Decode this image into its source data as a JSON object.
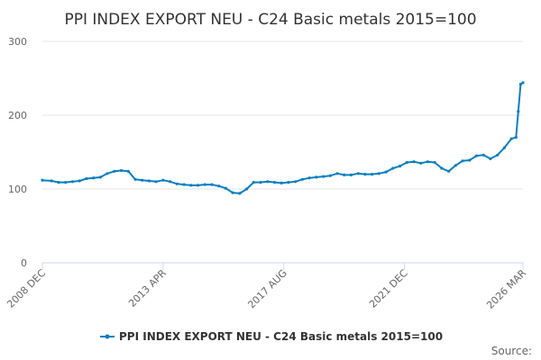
{
  "chart_data": {
    "type": "line",
    "title": "PPI INDEX EXPORT NEU - C24 Basic metals 2015=100",
    "xlabel": "",
    "ylabel": "",
    "x_tick_labels": [
      "2008 DEC",
      "2013 APR",
      "2017 AUG",
      "2021 DEC",
      "2026 MAR"
    ],
    "x_tick_years": [
      2008.917,
      2013.25,
      2017.583,
      2021.917,
      2026.167
    ],
    "x_range": [
      2008.917,
      2026.167
    ],
    "y_ticks": [
      0,
      100,
      200,
      300
    ],
    "ylim": [
      0,
      300
    ],
    "grid": "horizontal",
    "legend": "bottom",
    "color": "#0a7fc1",
    "series": [
      {
        "name": "PPI INDEX EXPORT NEU - C24 Basic metals 2015=100",
        "x": [
          2008.917,
          2009.25,
          2009.5,
          2009.75,
          2010.0,
          2010.25,
          2010.5,
          2010.75,
          2011.0,
          2011.25,
          2011.5,
          2011.75,
          2012.0,
          2012.25,
          2012.5,
          2012.75,
          2013.0,
          2013.25,
          2013.5,
          2013.75,
          2014.0,
          2014.25,
          2014.5,
          2014.75,
          2015.0,
          2015.25,
          2015.5,
          2015.75,
          2016.0,
          2016.25,
          2016.5,
          2016.75,
          2017.0,
          2017.25,
          2017.5,
          2017.75,
          2018.0,
          2018.25,
          2018.5,
          2018.75,
          2019.0,
          2019.25,
          2019.5,
          2019.75,
          2020.0,
          2020.25,
          2020.5,
          2020.75,
          2021.0,
          2021.25,
          2021.5,
          2021.75,
          2022.0,
          2022.25,
          2022.5,
          2022.75,
          2023.0,
          2023.25,
          2023.5,
          2023.75,
          2024.0,
          2024.25,
          2024.5,
          2024.75,
          2025.0,
          2025.25,
          2025.5,
          2025.75,
          2025.917,
          2026.0,
          2026.083,
          2026.167
        ],
        "values": [
          112,
          111,
          109,
          109,
          110,
          111,
          114,
          115,
          116,
          121,
          124,
          125,
          124,
          113,
          112,
          111,
          110,
          112,
          110,
          107,
          106,
          105,
          105,
          106,
          106,
          104,
          101,
          95,
          94,
          100,
          109,
          109,
          110,
          109,
          108,
          109,
          110,
          113,
          115,
          116,
          117,
          118,
          121,
          119,
          119,
          121,
          120,
          120,
          121,
          123,
          128,
          131,
          136,
          137,
          135,
          137,
          136,
          128,
          124,
          132,
          138,
          139,
          145,
          146,
          141,
          146,
          156,
          168,
          170,
          205,
          242,
          244
        ]
      }
    ]
  },
  "legend_label": "PPI INDEX EXPORT NEU - C24 Basic metals 2015=100",
  "source_label": "Source:"
}
